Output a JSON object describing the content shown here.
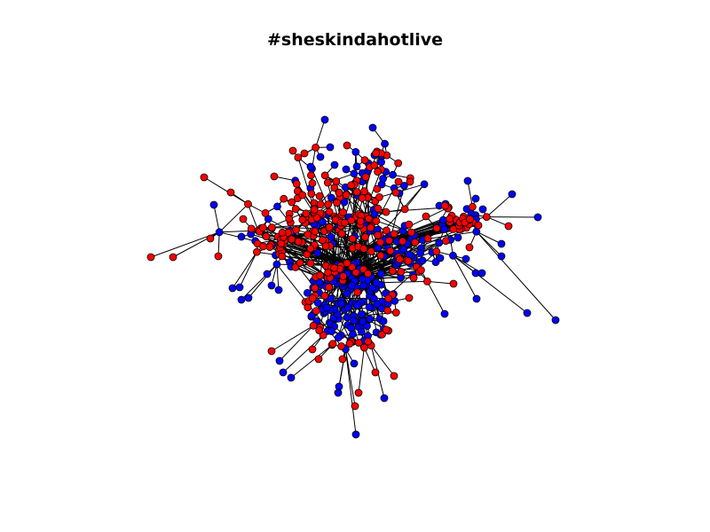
{
  "title": "#sheskindahotlive",
  "colors": {
    "node_red": "#ff0000",
    "node_blue": "#0000ff",
    "node_stroke": "#000000",
    "edge": "#000000",
    "background": "#ffffff"
  },
  "graph": {
    "type": "network",
    "node_groups": [
      "red",
      "blue"
    ]
  }
}
